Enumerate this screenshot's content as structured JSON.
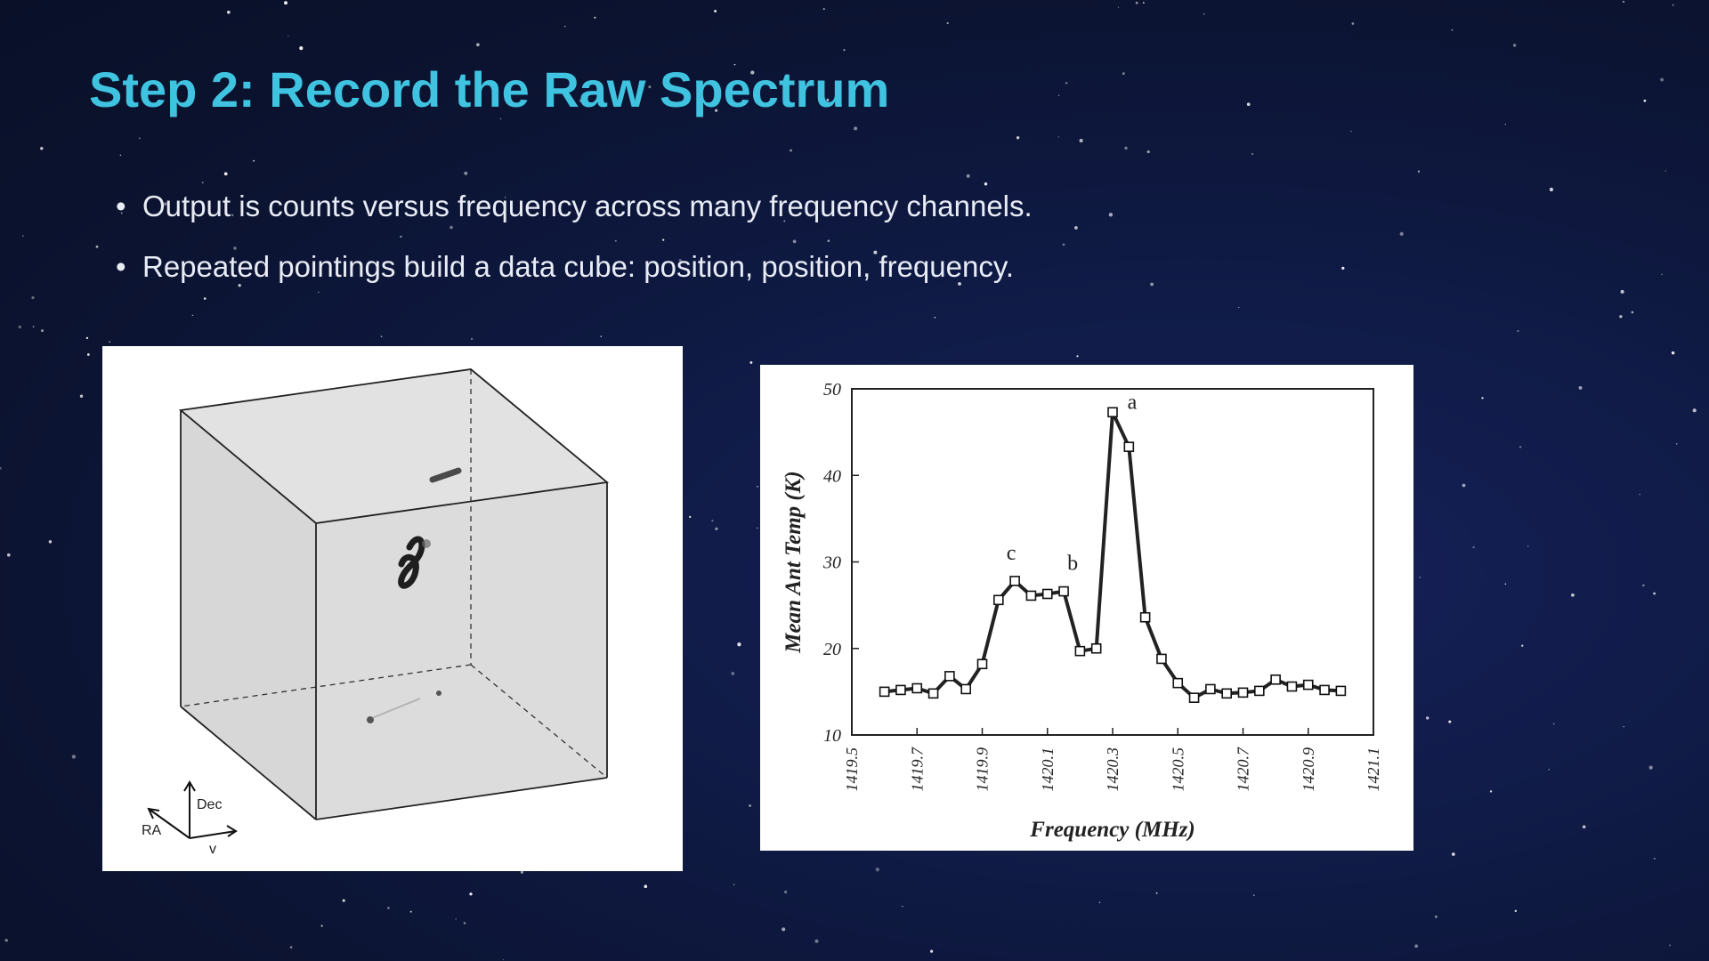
{
  "slide": {
    "title": "Step 2: Record the Raw Spectrum",
    "bullets": [
      "Output is counts versus frequency across many frequency channels.",
      "Repeated pointings build a data cube: position, position, frequency."
    ],
    "title_color": "#3fc3e0",
    "text_color": "#e8ecf5",
    "background_color": "#0f1a44"
  },
  "cube_figure": {
    "axis_labels": {
      "dec": "Dec",
      "ra": "RA",
      "v": "v"
    }
  },
  "spectrum_figure": {
    "chart_data": {
      "type": "line",
      "xlabel": "Frequency (MHz)",
      "ylabel": "Mean Ant Temp (K)",
      "xlim": [
        1419.5,
        1421.1
      ],
      "ylim": [
        10,
        50
      ],
      "xticks": [
        "1419.5",
        "1419.7",
        "1419.9",
        "1420.1",
        "1420.3",
        "1420.5",
        "1420.7",
        "1420.9",
        "1421.1"
      ],
      "yticks": [
        "10",
        "20",
        "30",
        "40",
        "50"
      ],
      "marker": "open-square",
      "x": [
        1419.6,
        1419.65,
        1419.7,
        1419.75,
        1419.8,
        1419.85,
        1419.9,
        1419.95,
        1420.0,
        1420.05,
        1420.1,
        1420.15,
        1420.2,
        1420.25,
        1420.3,
        1420.35,
        1420.4,
        1420.45,
        1420.5,
        1420.55,
        1420.6,
        1420.65,
        1420.7,
        1420.75,
        1420.8,
        1420.85,
        1420.9,
        1420.95,
        1421.0
      ],
      "y": [
        15.0,
        15.2,
        15.4,
        14.8,
        16.8,
        15.3,
        18.2,
        25.6,
        27.8,
        26.1,
        26.3,
        26.6,
        19.7,
        20.0,
        47.3,
        43.3,
        23.6,
        18.8,
        16.0,
        14.3,
        15.3,
        14.8,
        14.9,
        15.1,
        16.4,
        15.6,
        15.8,
        15.2,
        15.1
      ],
      "annotations": [
        {
          "text": "a",
          "x": 1420.3,
          "y": 47.3
        },
        {
          "text": "b",
          "x": 1420.15,
          "y": 26.6
        },
        {
          "text": "c",
          "x": 1420.0,
          "y": 27.8
        }
      ]
    }
  }
}
